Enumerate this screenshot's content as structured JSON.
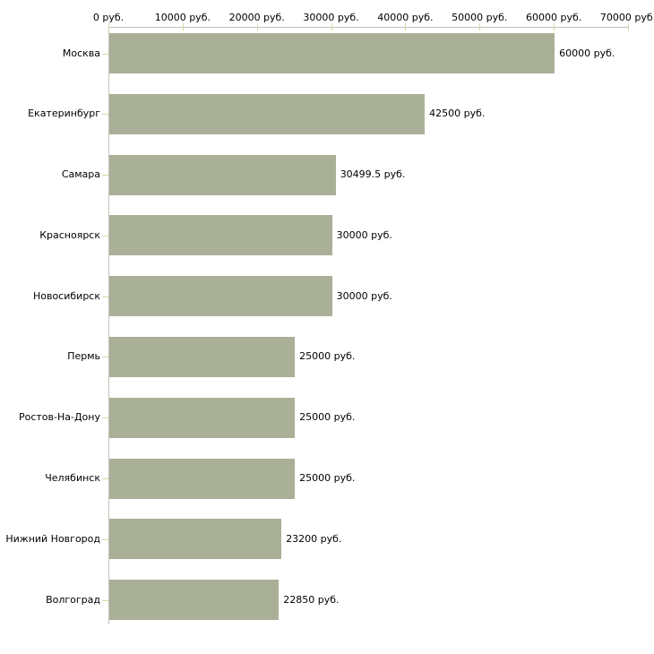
{
  "chart_data": {
    "type": "bar",
    "orientation": "horizontal",
    "title": "",
    "categories": [
      "Москва",
      "Екатеринбург",
      "Самара",
      "Красноярск",
      "Новосибирск",
      "Пермь",
      "Ростов-На-Дону",
      "Челябинск",
      "Нижний Новгород",
      "Волгоград"
    ],
    "values": [
      60000,
      42500,
      30499.5,
      30000,
      30000,
      25000,
      25000,
      25000,
      23200,
      22850
    ],
    "value_labels": [
      "60000 руб.",
      "42500 руб.",
      "30499.5 руб.",
      "30000 руб.",
      "30000 руб.",
      "25000 руб.",
      "25000 руб.",
      "25000 руб.",
      "23200 руб.",
      "22850 руб."
    ],
    "x_ticks": [
      0,
      10000,
      20000,
      30000,
      40000,
      50000,
      60000,
      70000
    ],
    "x_tick_labels": [
      "0 руб.",
      "10000 руб.",
      "20000 руб.",
      "30000 руб.",
      "40000 руб.",
      "50000 руб.",
      "60000 руб.",
      "70000 руб."
    ],
    "xlim": [
      0,
      70000
    ],
    "unit": "руб.",
    "grid": false,
    "legend": "none",
    "colors": {
      "bar": "#aab098",
      "axis_line": "#c2c2ba",
      "tick_mark": "#d6d8a2",
      "text": "#000000",
      "background": "#ffffff"
    }
  }
}
